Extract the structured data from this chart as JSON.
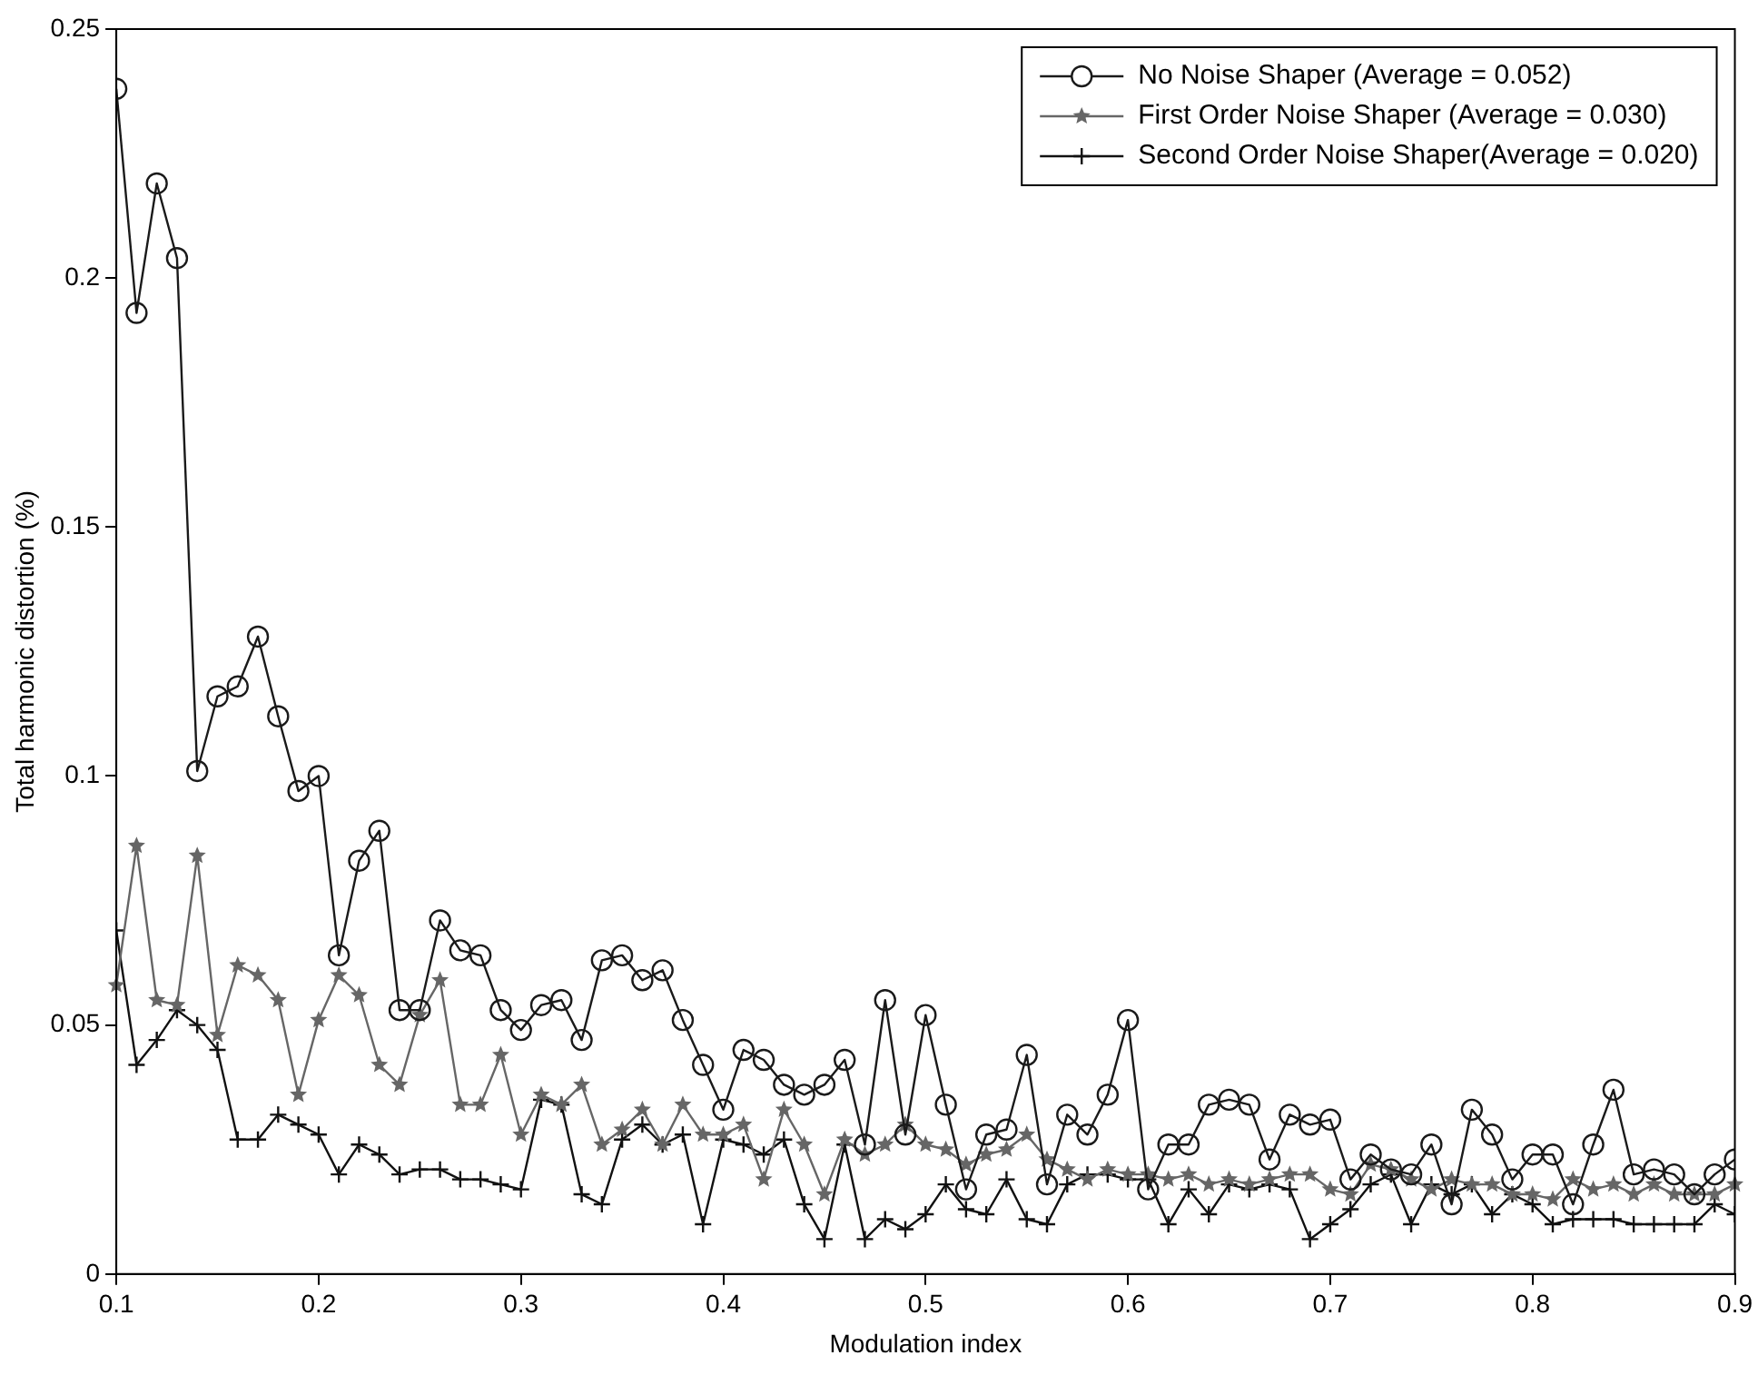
{
  "chart_data": {
    "type": "line",
    "xlabel": "Modulation index",
    "ylabel": "Total harmonic distortion (%)",
    "x": [
      0.1,
      0.11,
      0.12,
      0.13,
      0.14,
      0.15,
      0.16,
      0.17,
      0.18,
      0.19,
      0.2,
      0.21,
      0.22,
      0.23,
      0.24,
      0.25,
      0.26,
      0.27,
      0.28,
      0.29,
      0.3,
      0.31,
      0.32,
      0.33,
      0.34,
      0.35,
      0.36,
      0.37,
      0.38,
      0.39,
      0.4,
      0.41,
      0.42,
      0.43,
      0.44,
      0.45,
      0.46,
      0.47,
      0.48,
      0.49,
      0.5,
      0.51,
      0.52,
      0.53,
      0.54,
      0.55,
      0.56,
      0.57,
      0.58,
      0.59,
      0.6,
      0.61,
      0.62,
      0.63,
      0.64,
      0.65,
      0.66,
      0.67,
      0.68,
      0.69,
      0.7,
      0.71,
      0.72,
      0.73,
      0.74,
      0.75,
      0.76,
      0.77,
      0.78,
      0.79,
      0.8,
      0.81,
      0.82,
      0.83,
      0.84,
      0.85,
      0.86,
      0.87,
      0.88,
      0.89,
      0.9
    ],
    "series": [
      {
        "name": "No Noise Shaper (Average = 0.052)",
        "color": "#1a1a1a",
        "marker": "circle",
        "values": [
          0.238,
          0.193,
          0.219,
          0.204,
          0.101,
          0.116,
          0.118,
          0.128,
          0.112,
          0.097,
          0.1,
          0.064,
          0.083,
          0.089,
          0.053,
          0.053,
          0.071,
          0.065,
          0.064,
          0.053,
          0.049,
          0.054,
          0.055,
          0.047,
          0.063,
          0.064,
          0.059,
          0.061,
          0.051,
          0.042,
          0.033,
          0.045,
          0.043,
          0.038,
          0.036,
          0.038,
          0.043,
          0.026,
          0.055,
          0.028,
          0.052,
          0.034,
          0.017,
          0.028,
          0.029,
          0.044,
          0.018,
          0.032,
          0.028,
          0.036,
          0.051,
          0.017,
          0.026,
          0.026,
          0.034,
          0.035,
          0.034,
          0.023,
          0.032,
          0.03,
          0.031,
          0.019,
          0.024,
          0.021,
          0.02,
          0.026,
          0.014,
          0.033,
          0.028,
          0.019,
          0.024,
          0.024,
          0.014,
          0.026,
          0.037,
          0.02,
          0.021,
          0.02,
          0.016,
          0.02,
          0.023
        ]
      },
      {
        "name": "First Order Noise Shaper (Average = 0.030)",
        "color": "#666666",
        "marker": "star",
        "values": [
          0.058,
          0.086,
          0.055,
          0.054,
          0.084,
          0.048,
          0.062,
          0.06,
          0.055,
          0.036,
          0.051,
          0.06,
          0.056,
          0.042,
          0.038,
          0.052,
          0.059,
          0.034,
          0.034,
          0.044,
          0.028,
          0.036,
          0.034,
          0.038,
          0.026,
          0.029,
          0.033,
          0.026,
          0.034,
          0.028,
          0.028,
          0.03,
          0.019,
          0.033,
          0.026,
          0.016,
          0.027,
          0.024,
          0.026,
          0.03,
          0.026,
          0.025,
          0.022,
          0.024,
          0.025,
          0.028,
          0.023,
          0.021,
          0.019,
          0.021,
          0.02,
          0.02,
          0.019,
          0.02,
          0.018,
          0.019,
          0.018,
          0.019,
          0.02,
          0.02,
          0.017,
          0.016,
          0.022,
          0.021,
          0.019,
          0.017,
          0.019,
          0.018,
          0.018,
          0.016,
          0.016,
          0.015,
          0.019,
          0.017,
          0.018,
          0.016,
          0.018,
          0.016,
          0.016,
          0.016,
          0.018
        ]
      },
      {
        "name": "Second Order Noise Shaper(Average = 0.020)",
        "color": "#111111",
        "marker": "cross",
        "values": [
          0.069,
          0.042,
          0.047,
          0.053,
          0.05,
          0.045,
          0.027,
          0.027,
          0.032,
          0.03,
          0.028,
          0.02,
          0.026,
          0.024,
          0.02,
          0.021,
          0.021,
          0.019,
          0.019,
          0.018,
          0.017,
          0.035,
          0.034,
          0.016,
          0.014,
          0.027,
          0.03,
          0.026,
          0.028,
          0.01,
          0.027,
          0.026,
          0.024,
          0.027,
          0.014,
          0.007,
          0.026,
          0.007,
          0.011,
          0.009,
          0.012,
          0.018,
          0.013,
          0.012,
          0.019,
          0.011,
          0.01,
          0.018,
          0.02,
          0.02,
          0.019,
          0.019,
          0.01,
          0.017,
          0.012,
          0.018,
          0.017,
          0.018,
          0.017,
          0.007,
          0.01,
          0.013,
          0.018,
          0.02,
          0.01,
          0.018,
          0.016,
          0.018,
          0.012,
          0.016,
          0.014,
          0.01,
          0.011,
          0.011,
          0.011,
          0.01,
          0.01,
          0.01,
          0.01,
          0.014,
          0.012
        ]
      }
    ],
    "xlim": [
      0.1,
      0.9
    ],
    "xticks": [
      0.1,
      0.2,
      0.3,
      0.4,
      0.5,
      0.6,
      0.7,
      0.8,
      0.9
    ],
    "ylim": [
      0,
      0.25
    ],
    "yticks": [
      0,
      0.05,
      0.1,
      0.15,
      0.2,
      0.25
    ],
    "grid": false,
    "legend": "top right",
    "line_style": "solid"
  }
}
